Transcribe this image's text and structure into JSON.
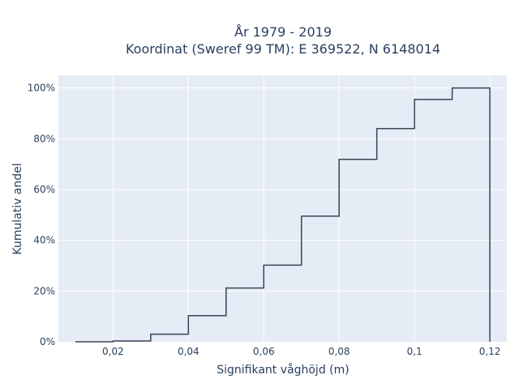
{
  "chart_data": {
    "type": "line",
    "line_shape": "step",
    "title_line1": "År 1979 - 2019",
    "title_line2": "Koordinat (Sweref 99 TM): E 369522, N 6148014",
    "xlabel": "Signifikant våghöjd (m)",
    "ylabel": "Kumulativ andel",
    "xlim": [
      0.0055,
      0.1245
    ],
    "ylim": [
      0,
      1.05
    ],
    "x_ticks": [
      0.02,
      0.04,
      0.06,
      0.08,
      0.1,
      0.12
    ],
    "x_tick_labels": [
      "0,02",
      "0,04",
      "0,06",
      "0,08",
      "0,1",
      "0,12"
    ],
    "y_ticks": [
      0,
      0.2,
      0.4,
      0.6,
      0.8,
      1.0
    ],
    "y_tick_labels": [
      "0%",
      "20%",
      "40%",
      "60%",
      "80%",
      "100%"
    ],
    "grid": true,
    "series": [
      {
        "x": [
          0.01,
          0.02,
          0.03,
          0.04,
          0.05,
          0.06,
          0.07,
          0.08,
          0.09,
          0.1,
          0.11,
          0.12
        ],
        "y": [
          0.0,
          0.003,
          0.03,
          0.103,
          0.212,
          0.302,
          0.495,
          0.719,
          0.84,
          0.955,
          1.0,
          1.0
        ],
        "drop_to_zero_at_end": true
      }
    ],
    "colors": {
      "plot_bg": "#e5ecf6",
      "grid": "#ffffff",
      "line": "#3b4453",
      "text": "#2a3f5f"
    }
  }
}
